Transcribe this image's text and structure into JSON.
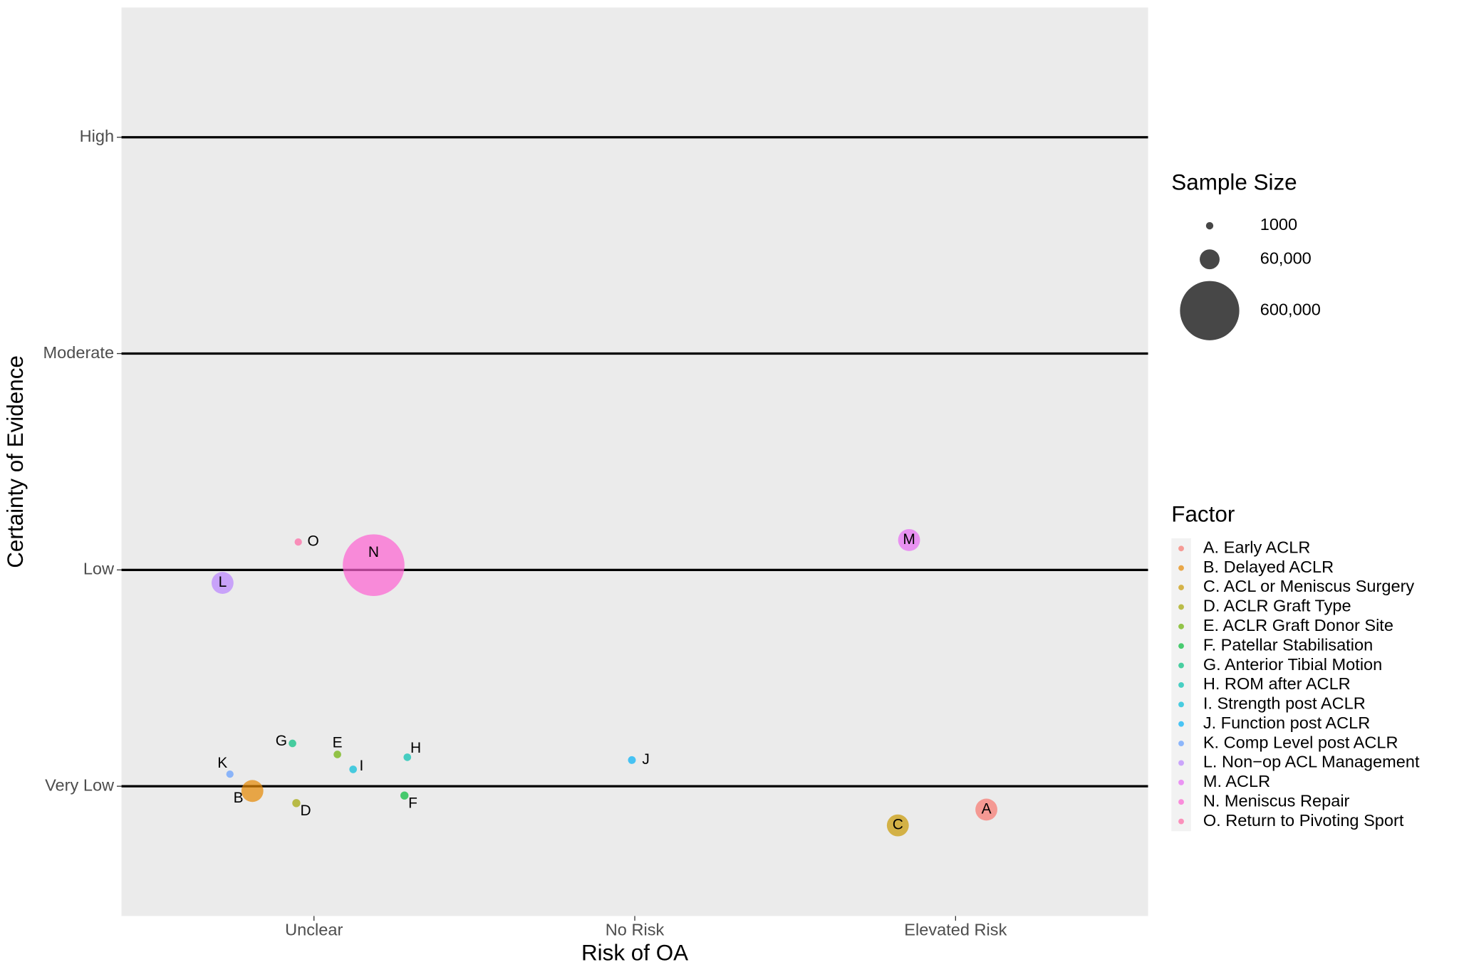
{
  "chart_data": {
    "type": "bubble",
    "x_label": "Risk of OA",
    "y_label": "Certainty of Evidence",
    "xlim": [
      0.4,
      3.6
    ],
    "ylim": [
      0.4,
      4.6
    ],
    "xticks": [
      {
        "value": 1,
        "label": "Unclear"
      },
      {
        "value": 2,
        "label": "No Risk"
      },
      {
        "value": 3,
        "label": "Elevated Risk"
      }
    ],
    "yticks": [
      {
        "value": 1,
        "label": "Very Low"
      },
      {
        "value": 2,
        "label": "Low"
      },
      {
        "value": 3,
        "label": "Moderate"
      },
      {
        "value": 4,
        "label": "High"
      }
    ],
    "grid": "y",
    "legend_title": "Factor",
    "size_legend": {
      "title": "Sample Size",
      "values": [
        1000,
        {
          "value": 60000,
          "label": "60,000"
        },
        {
          "value": 600000,
          "label": "600,000"
        }
      ]
    },
    "series": [
      {
        "name": "A. Early ACLR",
        "label": "A",
        "color": "#F8766D",
        "x": 3.096,
        "y": 0.892,
        "size": 75000
      },
      {
        "name": "B. Delayed ACLR",
        "label": "B",
        "color": "#E58700",
        "x": 0.808,
        "y": 0.978,
        "size": 75000
      },
      {
        "name": "C. ACL or Meniscus Surgery",
        "label": "C",
        "color": "#C99800",
        "x": 2.82,
        "y": 0.819,
        "size": 75000
      },
      {
        "name": "D. ACLR Graft Type",
        "label": "D",
        "color": "#A3A500",
        "x": 0.945,
        "y": 0.922,
        "size": 3000
      },
      {
        "name": "E. ACLR Graft Donor Site",
        "label": "E",
        "color": "#6BB100",
        "x": 1.073,
        "y": 1.147,
        "size": 1500
      },
      {
        "name": "F. Patellar Stabilisation",
        "label": "F",
        "color": "#00BA38",
        "x": 1.282,
        "y": 0.957,
        "size": 3000
      },
      {
        "name": "G. Anterior Tibial Motion",
        "label": "G",
        "color": "#00BF7D",
        "x": 0.933,
        "y": 1.198,
        "size": 1500
      },
      {
        "name": "H. ROM after ACLR",
        "label": "H",
        "color": "#00C0AF",
        "x": 1.291,
        "y": 1.134,
        "size": 1500
      },
      {
        "name": "I.  Strength post ACLR",
        "label": "I",
        "color": "#00BCD8",
        "x": 1.122,
        "y": 1.078,
        "size": 1500
      },
      {
        "name": "J.  Function post ACLR",
        "label": "J",
        "color": "#00B0F6",
        "x": 1.991,
        "y": 1.121,
        "size": 2000
      },
      {
        "name": "K. Comp Level post ACLR",
        "label": "K",
        "color": "#619CFF",
        "x": 0.738,
        "y": 1.056,
        "size": 800
      },
      {
        "name": "L. Non−op ACL Management",
        "label": "L",
        "color": "#B983FF",
        "x": 0.715,
        "y": 1.94,
        "size": 75000
      },
      {
        "name": "M. ACLR",
        "label": "M",
        "color": "#E76BF3",
        "x": 2.855,
        "y": 2.138,
        "size": 75000
      },
      {
        "name": "N. Meniscus Repair",
        "label": "N",
        "color": "#FD61D1",
        "x": 1.186,
        "y": 2.022,
        "size": 650000
      },
      {
        "name": "O. Return to Pivoting Sport",
        "label": "O",
        "color": "#FF67A4",
        "x": 0.951,
        "y": 2.129,
        "size": 800
      }
    ]
  }
}
